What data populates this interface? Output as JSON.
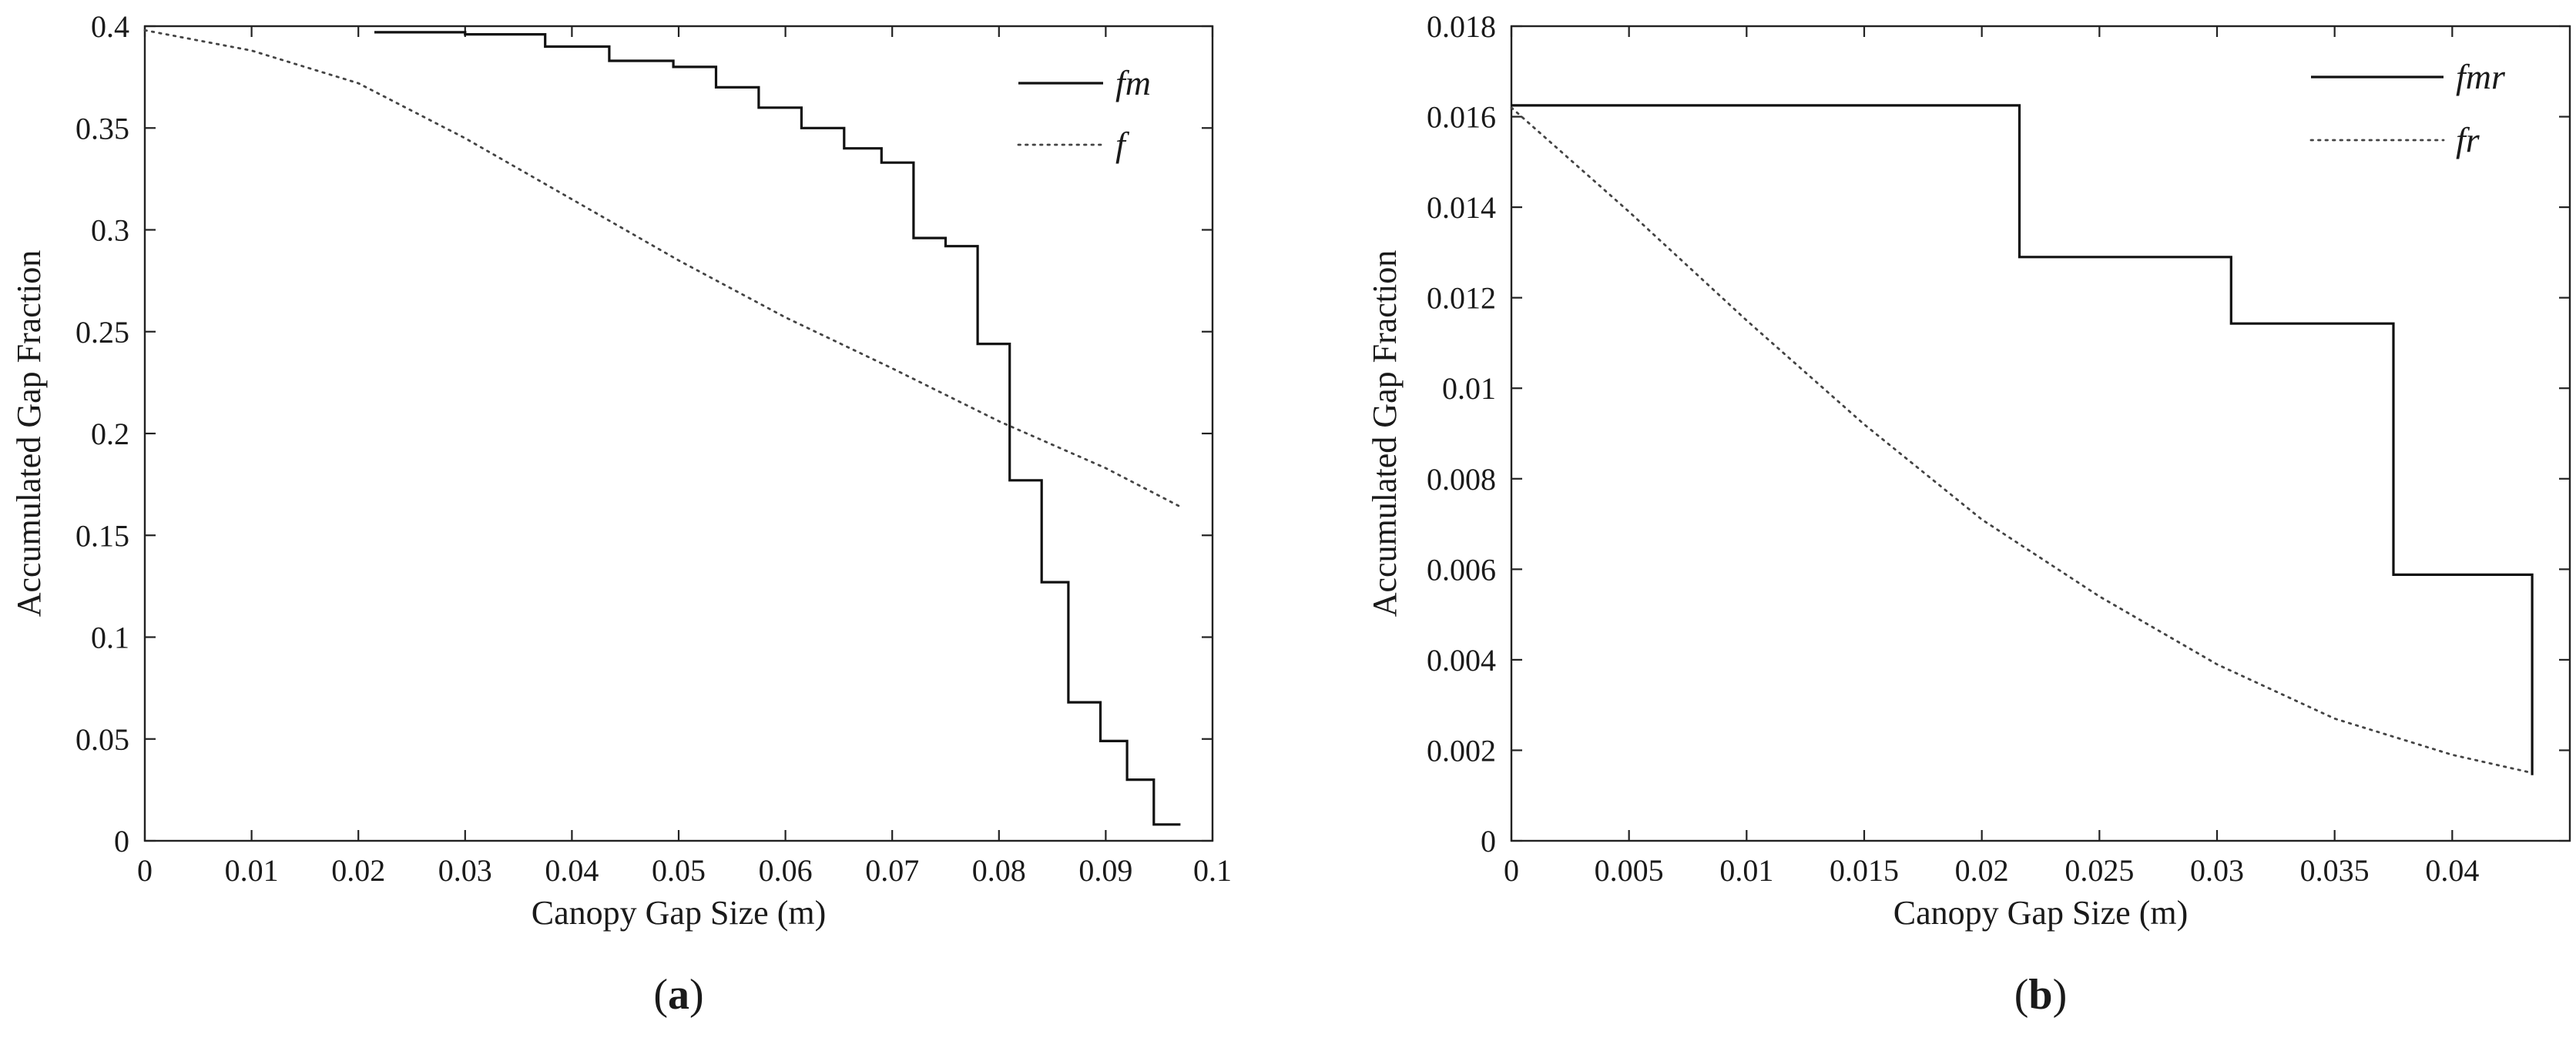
{
  "chart_data": [
    {
      "panel": "(a)",
      "panel_letter": "a",
      "type": "line",
      "xlabel": "Canopy Gap Size (m)",
      "ylabel": "Accumulated Gap Fraction",
      "xlim": [
        0,
        0.1
      ],
      "ylim": [
        0,
        0.4
      ],
      "xticks": [
        "0",
        "0.01",
        "0.02",
        "0.03",
        "0.04",
        "0.05",
        "0.06",
        "0.07",
        "0.08",
        "0.09",
        "0.1"
      ],
      "yticks": [
        "0",
        "0.05",
        "0.1",
        "0.15",
        "0.2",
        "0.25",
        "0.3",
        "0.35",
        "0.4"
      ],
      "grid": false,
      "legend_position": "top-right",
      "series": [
        {
          "name": "fm",
          "style": "solid-step",
          "color": "#111111",
          "x": [
            0.0215,
            0.03,
            0.0375,
            0.0435,
            0.0495,
            0.0535,
            0.0575,
            0.0615,
            0.0655,
            0.069,
            0.072,
            0.075,
            0.078,
            0.081,
            0.084,
            0.0865,
            0.0895,
            0.092,
            0.0945,
            0.097
          ],
          "y": [
            0.397,
            0.396,
            0.39,
            0.383,
            0.38,
            0.37,
            0.36,
            0.35,
            0.34,
            0.333,
            0.296,
            0.292,
            0.244,
            0.177,
            0.127,
            0.068,
            0.049,
            0.03,
            0.008,
            0.008
          ]
        },
        {
          "name": "f",
          "style": "dotted",
          "color": "#444444",
          "x": [
            0,
            0.01,
            0.02,
            0.03,
            0.04,
            0.05,
            0.06,
            0.07,
            0.08,
            0.09,
            0.097
          ],
          "y": [
            0.398,
            0.388,
            0.372,
            0.345,
            0.315,
            0.285,
            0.257,
            0.232,
            0.206,
            0.183,
            0.164
          ]
        }
      ]
    },
    {
      "panel": "(b)",
      "panel_letter": "b",
      "type": "line",
      "xlabel": "Canopy Gap Size (m)",
      "ylabel": "Accumulated Gap Fraction",
      "xlim": [
        0,
        0.045
      ],
      "ylim": [
        0,
        0.018
      ],
      "xticks": [
        "0",
        "0.005",
        "0.01",
        "0.015",
        "0.02",
        "0.025",
        "0.03",
        "0.035",
        "0.04"
      ],
      "yticks": [
        "0",
        "0.002",
        "0.004",
        "0.006",
        "0.008",
        "0.01",
        "0.012",
        "0.014",
        "0.016",
        "0.018"
      ],
      "grid": false,
      "legend_position": "top-right",
      "series": [
        {
          "name": "fmr",
          "style": "solid-step",
          "color": "#111111",
          "x": [
            0,
            0.0216,
            0.0306,
            0.0375,
            0.0434
          ],
          "y": [
            0.01625,
            0.0129,
            0.01143,
            0.00588,
            0.00145
          ]
        },
        {
          "name": "fr",
          "style": "dotted",
          "color": "#444444",
          "x": [
            0,
            0.005,
            0.01,
            0.015,
            0.02,
            0.025,
            0.03,
            0.035,
            0.04,
            0.0434
          ],
          "y": [
            0.0162,
            0.0139,
            0.0115,
            0.0092,
            0.0071,
            0.0054,
            0.0039,
            0.0027,
            0.0019,
            0.0015
          ]
        }
      ]
    }
  ]
}
